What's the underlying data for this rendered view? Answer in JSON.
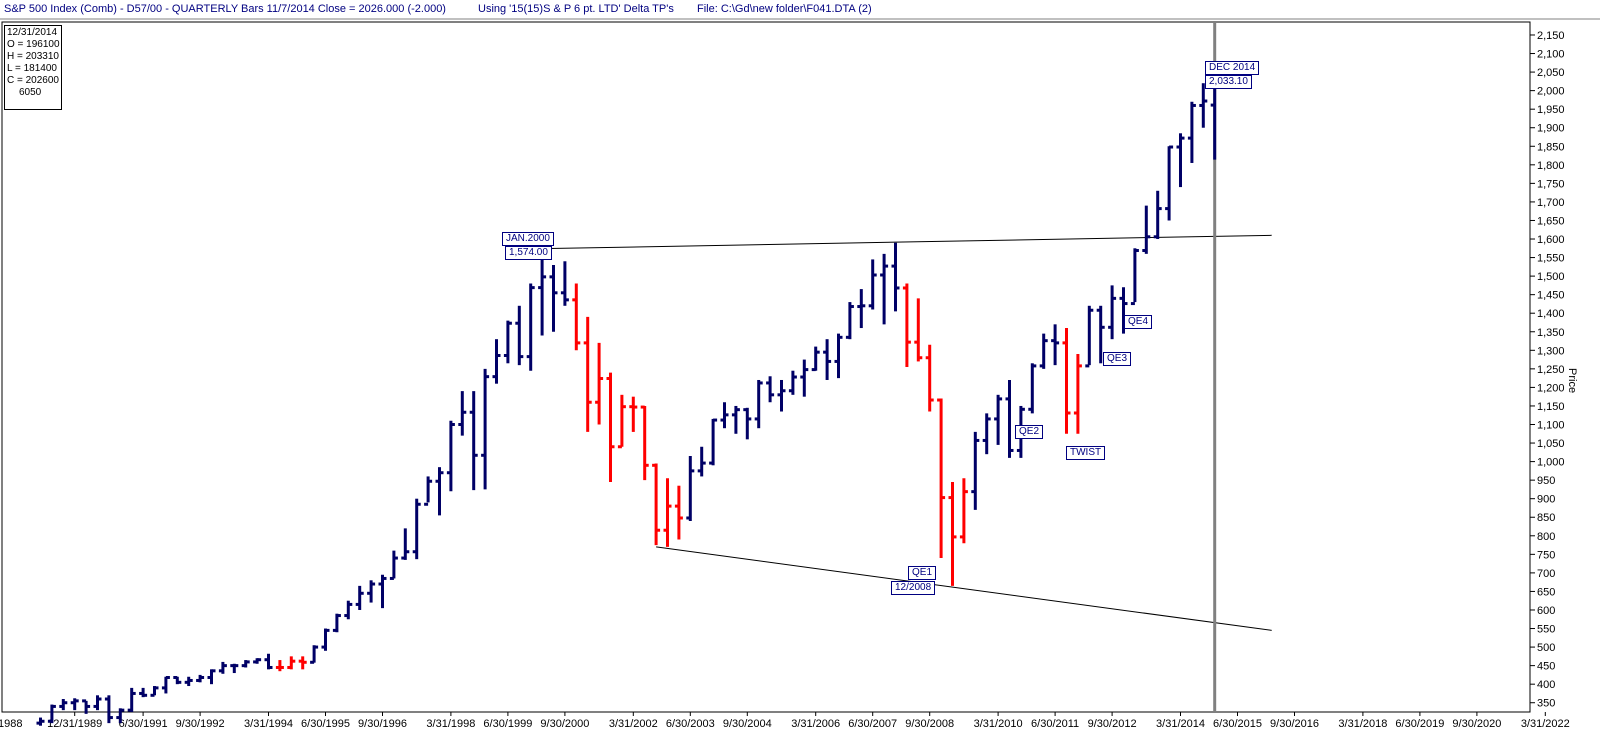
{
  "header": {
    "title": "S&P 500 Index (Comb) - D57/00  - QUARTERLY Bars  11/7/2014 Close = 2026.000 (-2.000)",
    "using": "Using '15(15)S & P  6 pt. LTD' Delta TP's",
    "file": "File: C:\\Gd\\new folder\\F041.DTA (2)"
  },
  "ohlc_box": {
    "date": "12/31/2014",
    "open": "O = 196100",
    "high": "H = 203310",
    "low": "L = 181400",
    "close": "C = 202600",
    "extra": "6050"
  },
  "annotations": {
    "jan2000_label": "JAN.2000",
    "jan2000_value": "1,574.00",
    "dec2014_label": "DEC 2014",
    "dec2014_value": "2,033.10",
    "qe1": "QE1",
    "qe1_date": "12/2008",
    "qe2": "QE2",
    "qe3": "QE3",
    "qe4": "QE4",
    "twist": "TWIST"
  },
  "colors": {
    "up": "#000066",
    "down": "#ff0000",
    "header_text": "#000080",
    "cursor": "#808080"
  },
  "chart_data": {
    "type": "ohlc",
    "title": "S&P 500 Index (Comb) - QUARTERLY Bars",
    "ylabel": "Price",
    "ylim": [
      325,
      2185
    ],
    "y_ticks": [
      350,
      400,
      450,
      500,
      550,
      600,
      650,
      700,
      750,
      800,
      850,
      900,
      950,
      1000,
      1050,
      1100,
      1150,
      1200,
      1250,
      1300,
      1350,
      1400,
      1450,
      1500,
      1550,
      1600,
      1650,
      1700,
      1750,
      1800,
      1850,
      1900,
      1950,
      2000,
      2050,
      2100,
      2150
    ],
    "y_tick_labels": [
      "350",
      "400",
      "450",
      "500",
      "550",
      "600",
      "650",
      "700",
      "750",
      "800",
      "850",
      "900",
      "950",
      "1,000",
      "1,050",
      "1,100",
      "1,150",
      "1,200",
      "1,250",
      "1,300",
      "1,350",
      "1,400",
      "1,450",
      "1,500",
      "1,550",
      "1,600",
      "1,650",
      "1,700",
      "1,750",
      "1,800",
      "1,850",
      "1,900",
      "1,950",
      "2,000",
      "2,050",
      "2,100",
      "2,150"
    ],
    "x_tick_labels": [
      "/1988",
      "12/31/1989",
      "6/30/1991",
      "9/30/1992",
      "3/31/1994",
      "6/30/1995",
      "9/30/1996",
      "3/31/1998",
      "6/30/1999",
      "9/30/2000",
      "3/31/2002",
      "6/30/2003",
      "9/30/2004",
      "3/31/2006",
      "6/30/2007",
      "9/30/2008",
      "3/31/2010",
      "6/30/2011",
      "9/30/2012",
      "3/31/2014",
      "6/30/2015",
      "9/30/2016",
      "3/31/2018",
      "6/30/2019",
      "9/30/2020",
      "3/31/2022"
    ],
    "start_quarter": "1989 Q1",
    "bars": [
      [
        1989.0,
        295,
        310,
        288,
        300,
        "up"
      ],
      [
        1989.25,
        300,
        345,
        295,
        340,
        "up"
      ],
      [
        1989.5,
        340,
        360,
        330,
        350,
        "up"
      ],
      [
        1989.75,
        350,
        362,
        330,
        355,
        "up"
      ],
      [
        1990.0,
        355,
        355,
        320,
        340,
        "up"
      ],
      [
        1990.25,
        340,
        370,
        330,
        360,
        "up"
      ],
      [
        1990.5,
        360,
        370,
        295,
        310,
        "up"
      ],
      [
        1990.75,
        310,
        335,
        295,
        330,
        "up"
      ],
      [
        1991.0,
        330,
        390,
        325,
        375,
        "up"
      ],
      [
        1991.25,
        375,
        390,
        365,
        370,
        "up"
      ],
      [
        1991.5,
        370,
        395,
        370,
        390,
        "up"
      ],
      [
        1991.75,
        390,
        420,
        375,
        418,
        "up"
      ],
      [
        1992.0,
        418,
        420,
        400,
        405,
        "up"
      ],
      [
        1992.25,
        405,
        420,
        395,
        410,
        "up"
      ],
      [
        1992.5,
        410,
        425,
        405,
        418,
        "up"
      ],
      [
        1992.75,
        418,
        440,
        400,
        436,
        "up"
      ],
      [
        1993.0,
        436,
        460,
        428,
        450,
        "up"
      ],
      [
        1993.25,
        450,
        455,
        430,
        450,
        "up"
      ],
      [
        1993.5,
        450,
        465,
        445,
        460,
        "up"
      ],
      [
        1993.75,
        460,
        470,
        455,
        466,
        "up"
      ],
      [
        1994.0,
        466,
        482,
        440,
        445,
        "up"
      ],
      [
        1994.25,
        445,
        465,
        435,
        445,
        "down"
      ],
      [
        1994.5,
        445,
        475,
        440,
        462,
        "down"
      ],
      [
        1994.75,
        462,
        475,
        440,
        459,
        "down"
      ],
      [
        1995.0,
        459,
        505,
        458,
        500,
        "up"
      ],
      [
        1995.25,
        500,
        550,
        490,
        545,
        "up"
      ],
      [
        1995.5,
        545,
        590,
        540,
        585,
        "up"
      ],
      [
        1995.75,
        585,
        625,
        575,
        615,
        "up"
      ],
      [
        1996.0,
        615,
        665,
        600,
        645,
        "up"
      ],
      [
        1996.25,
        645,
        680,
        620,
        670,
        "up"
      ],
      [
        1996.5,
        670,
        695,
        605,
        685,
        "up"
      ],
      [
        1996.75,
        685,
        760,
        685,
        740,
        "up"
      ],
      [
        1997.0,
        740,
        820,
        735,
        757,
        "up"
      ],
      [
        1997.25,
        757,
        900,
        737,
        885,
        "up"
      ],
      [
        1997.5,
        885,
        960,
        890,
        947,
        "up"
      ],
      [
        1997.75,
        947,
        985,
        855,
        970,
        "up"
      ],
      [
        1998.0,
        970,
        1110,
        920,
        1100,
        "up"
      ],
      [
        1998.25,
        1100,
        1190,
        1070,
        1133,
        "up"
      ],
      [
        1998.5,
        1133,
        1190,
        923,
        1017,
        "up"
      ],
      [
        1998.75,
        1017,
        1250,
        925,
        1229,
        "up"
      ],
      [
        1999.0,
        1229,
        1330,
        1210,
        1286,
        "up"
      ],
      [
        1999.25,
        1286,
        1380,
        1265,
        1373,
        "up"
      ],
      [
        1999.5,
        1373,
        1420,
        1260,
        1283,
        "up"
      ],
      [
        1999.75,
        1283,
        1480,
        1245,
        1469,
        "up"
      ],
      [
        2000.0,
        1469,
        1574,
        1340,
        1498,
        "up"
      ],
      [
        2000.25,
        1498,
        1530,
        1350,
        1455,
        "up"
      ],
      [
        2000.5,
        1455,
        1540,
        1420,
        1436,
        "up"
      ],
      [
        2000.75,
        1436,
        1480,
        1300,
        1320,
        "down"
      ],
      [
        2001.0,
        1320,
        1390,
        1080,
        1160,
        "down"
      ],
      [
        2001.25,
        1160,
        1320,
        1100,
        1224,
        "down"
      ],
      [
        2001.5,
        1224,
        1240,
        945,
        1040,
        "down"
      ],
      [
        2001.75,
        1040,
        1180,
        1040,
        1148,
        "down"
      ],
      [
        2002.0,
        1148,
        1175,
        1080,
        1147,
        "down"
      ],
      [
        2002.25,
        1147,
        1150,
        950,
        990,
        "down"
      ],
      [
        2002.5,
        990,
        995,
        775,
        815,
        "down"
      ],
      [
        2002.75,
        815,
        955,
        770,
        880,
        "down"
      ],
      [
        2003.0,
        880,
        935,
        790,
        848,
        "down"
      ],
      [
        2003.25,
        848,
        1015,
        840,
        975,
        "up"
      ],
      [
        2003.5,
        975,
        1040,
        960,
        996,
        "up"
      ],
      [
        2003.75,
        996,
        1115,
        990,
        1112,
        "up"
      ],
      [
        2004.0,
        1112,
        1160,
        1090,
        1126,
        "up"
      ],
      [
        2004.25,
        1126,
        1150,
        1075,
        1140,
        "up"
      ],
      [
        2004.5,
        1140,
        1145,
        1060,
        1115,
        "up"
      ],
      [
        2004.75,
        1115,
        1220,
        1090,
        1212,
        "up"
      ],
      [
        2005.0,
        1212,
        1230,
        1160,
        1180,
        "up"
      ],
      [
        2005.25,
        1180,
        1220,
        1135,
        1191,
        "up"
      ],
      [
        2005.5,
        1191,
        1245,
        1180,
        1228,
        "up"
      ],
      [
        2005.75,
        1228,
        1275,
        1175,
        1248,
        "up"
      ],
      [
        2006.0,
        1248,
        1310,
        1245,
        1295,
        "up"
      ],
      [
        2006.25,
        1295,
        1330,
        1220,
        1270,
        "up"
      ],
      [
        2006.5,
        1270,
        1345,
        1225,
        1335,
        "up"
      ],
      [
        2006.75,
        1335,
        1430,
        1330,
        1418,
        "up"
      ],
      [
        2007.0,
        1418,
        1465,
        1360,
        1420,
        "up"
      ],
      [
        2007.25,
        1420,
        1545,
        1410,
        1503,
        "up"
      ],
      [
        2007.5,
        1503,
        1560,
        1370,
        1527,
        "up"
      ],
      [
        2007.75,
        1527,
        1590,
        1405,
        1468,
        "up"
      ],
      [
        2008.0,
        1468,
        1480,
        1255,
        1322,
        "down"
      ],
      [
        2008.25,
        1322,
        1440,
        1270,
        1280,
        "down"
      ],
      [
        2008.5,
        1280,
        1315,
        1135,
        1166,
        "down"
      ],
      [
        2008.75,
        1166,
        1170,
        740,
        903,
        "down"
      ],
      [
        2009.0,
        903,
        945,
        665,
        797,
        "down"
      ],
      [
        2009.25,
        797,
        955,
        780,
        919,
        "down"
      ],
      [
        2009.5,
        919,
        1080,
        870,
        1057,
        "up"
      ],
      [
        2009.75,
        1057,
        1130,
        1020,
        1115,
        "up"
      ],
      [
        2010.0,
        1115,
        1180,
        1045,
        1169,
        "up"
      ],
      [
        2010.25,
        1169,
        1220,
        1010,
        1030,
        "up"
      ],
      [
        2010.5,
        1030,
        1150,
        1010,
        1141,
        "up"
      ],
      [
        2010.75,
        1141,
        1265,
        1130,
        1258,
        "up"
      ],
      [
        2011.0,
        1258,
        1345,
        1250,
        1326,
        "up"
      ],
      [
        2011.25,
        1326,
        1370,
        1260,
        1320,
        "up"
      ],
      [
        2011.5,
        1320,
        1360,
        1075,
        1131,
        "down"
      ],
      [
        2011.75,
        1131,
        1290,
        1075,
        1258,
        "down"
      ],
      [
        2012.0,
        1258,
        1420,
        1260,
        1408,
        "up"
      ],
      [
        2012.25,
        1408,
        1420,
        1265,
        1362,
        "up"
      ],
      [
        2012.5,
        1362,
        1475,
        1330,
        1440,
        "up"
      ],
      [
        2012.75,
        1440,
        1470,
        1345,
        1426,
        "up"
      ],
      [
        2013.0,
        1426,
        1575,
        1430,
        1569,
        "up"
      ],
      [
        2013.25,
        1569,
        1690,
        1560,
        1606,
        "up"
      ],
      [
        2013.5,
        1606,
        1730,
        1600,
        1682,
        "up"
      ],
      [
        2013.75,
        1682,
        1850,
        1650,
        1848,
        "up"
      ],
      [
        2014.0,
        1848,
        1885,
        1740,
        1872,
        "up"
      ],
      [
        2014.25,
        1872,
        1970,
        1805,
        1960,
        "up"
      ],
      [
        2014.5,
        1960,
        2020,
        1900,
        1972,
        "up"
      ],
      [
        2014.75,
        1961,
        2033,
        1814,
        2026,
        "up"
      ]
    ],
    "trendlines": [
      {
        "x1": 2000.0,
        "y1": 1574,
        "x2": 2016.0,
        "y2": 1610
      },
      {
        "x1": 2002.5,
        "y1": 770,
        "x2": 2016.0,
        "y2": 545
      }
    ],
    "cursor_x": 2014.75,
    "grid": false
  }
}
